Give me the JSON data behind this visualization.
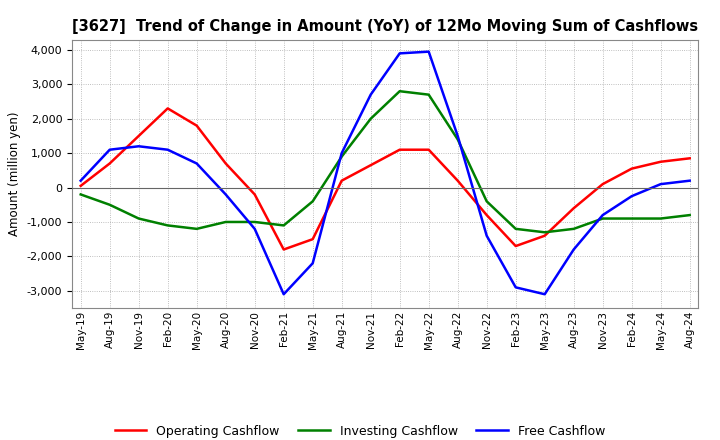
{
  "title": "[3627]  Trend of Change in Amount (YoY) of 12Mo Moving Sum of Cashflows",
  "ylabel": "Amount (million yen)",
  "ylim": [
    -3500,
    4300
  ],
  "yticks": [
    -3000,
    -2000,
    -1000,
    0,
    1000,
    2000,
    3000,
    4000
  ],
  "background_color": "#ffffff",
  "grid_color": "#aaaaaa",
  "x_labels": [
    "May-19",
    "Aug-19",
    "Nov-19",
    "Feb-20",
    "May-20",
    "Aug-20",
    "Nov-20",
    "Feb-21",
    "May-21",
    "Aug-21",
    "Nov-21",
    "Feb-22",
    "May-22",
    "Aug-22",
    "Nov-22",
    "Feb-23",
    "May-23",
    "Aug-23",
    "Nov-23",
    "Feb-24",
    "May-24",
    "Aug-24"
  ],
  "operating": [
    50,
    700,
    1500,
    2300,
    1800,
    700,
    -200,
    -1800,
    -1500,
    200,
    650,
    1100,
    1100,
    200,
    -800,
    -1700,
    -1400,
    -600,
    100,
    550,
    750,
    850
  ],
  "investing": [
    -200,
    -500,
    -900,
    -1100,
    -1200,
    -1000,
    -1000,
    -1100,
    -400,
    900,
    2000,
    2800,
    2700,
    1400,
    -400,
    -1200,
    -1300,
    -1200,
    -900,
    -900,
    -900,
    -800
  ],
  "free": [
    200,
    1100,
    1200,
    1100,
    700,
    -200,
    -1200,
    -3100,
    -2200,
    1000,
    2700,
    3900,
    3950,
    1500,
    -1400,
    -2900,
    -3100,
    -1800,
    -800,
    -250,
    100,
    200
  ],
  "operating_color": "#ff0000",
  "investing_color": "#008000",
  "free_color": "#0000ff",
  "line_width": 1.8
}
